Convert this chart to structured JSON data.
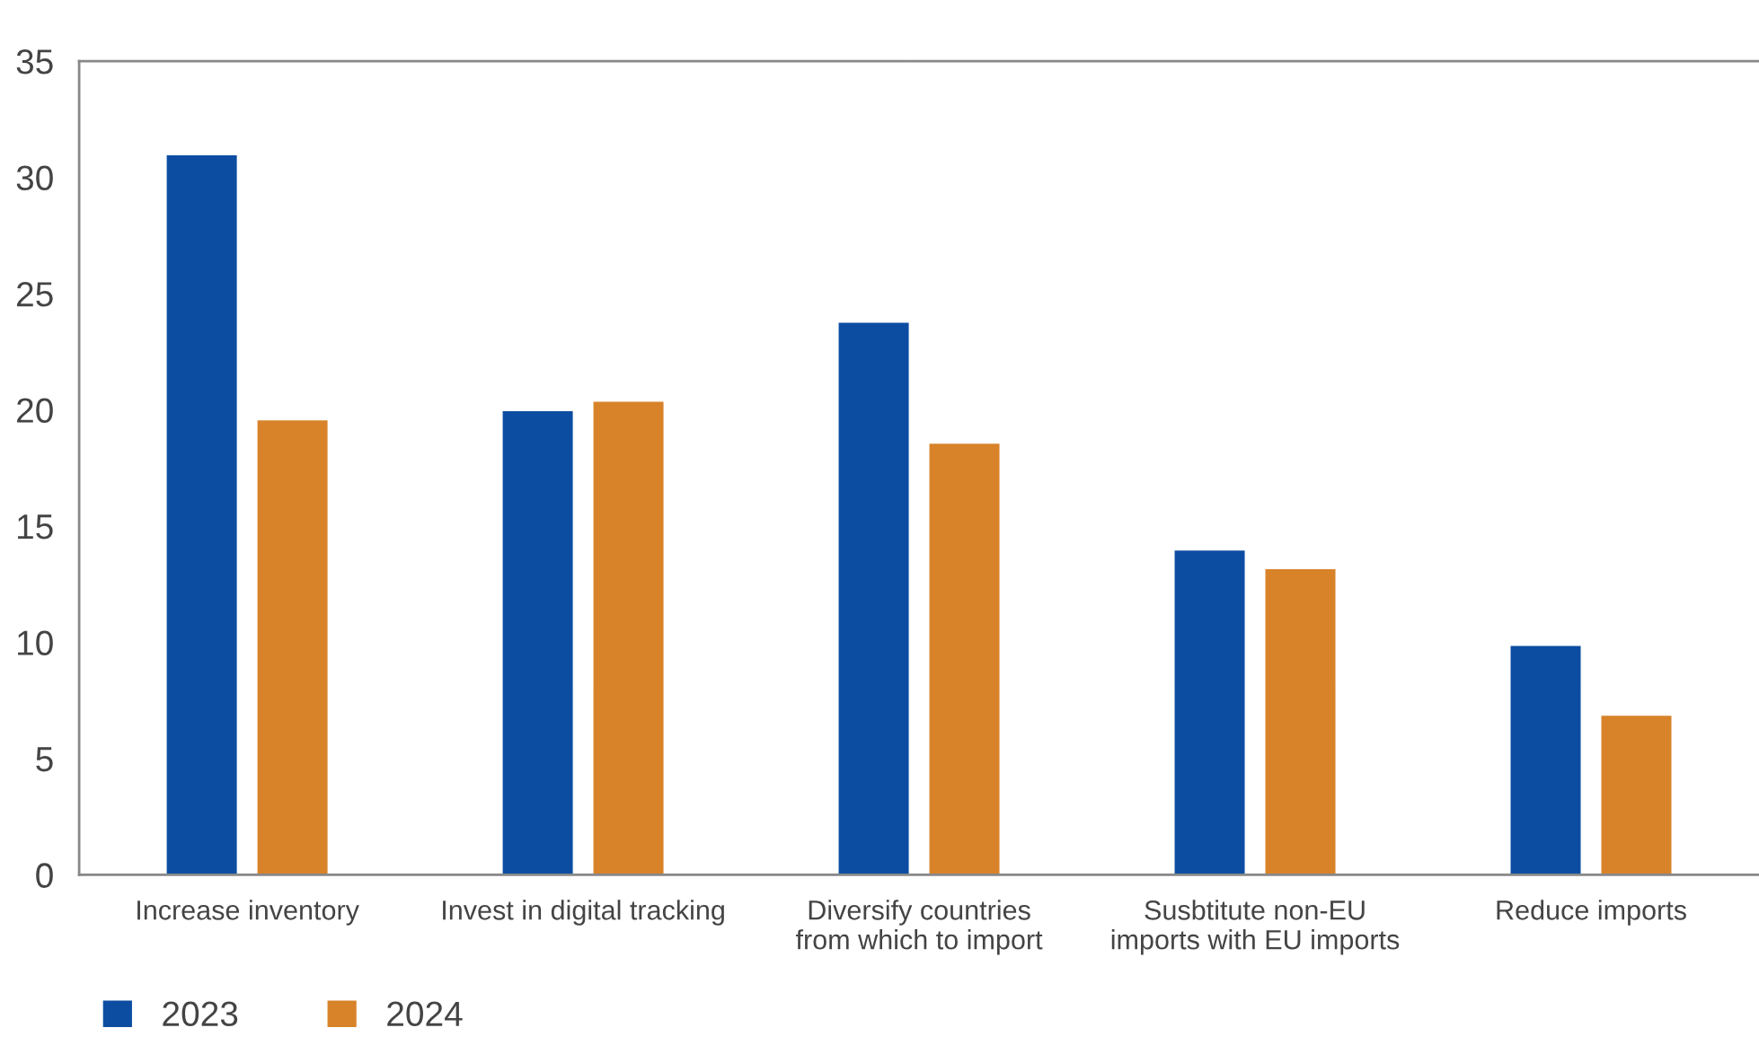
{
  "chart_data": {
    "type": "bar",
    "categories": [
      "Increase inventory",
      "Invest in digital tracking",
      "Diversify countries\nfrom which to import",
      "Susbtitute non-EU\nimports with EU imports",
      "Reduce imports"
    ],
    "series": [
      {
        "name": "2023",
        "color": "#0c4da2",
        "values": [
          31.0,
          20.0,
          23.8,
          14.0,
          9.9
        ]
      },
      {
        "name": "2024",
        "color": "#d8832a",
        "values": [
          19.6,
          20.4,
          18.6,
          13.2,
          6.9
        ]
      }
    ],
    "ylim": [
      0,
      35
    ],
    "yticks": [
      0,
      5,
      10,
      15,
      20,
      25,
      30,
      35
    ],
    "grid": false,
    "legend": "bottom left"
  }
}
